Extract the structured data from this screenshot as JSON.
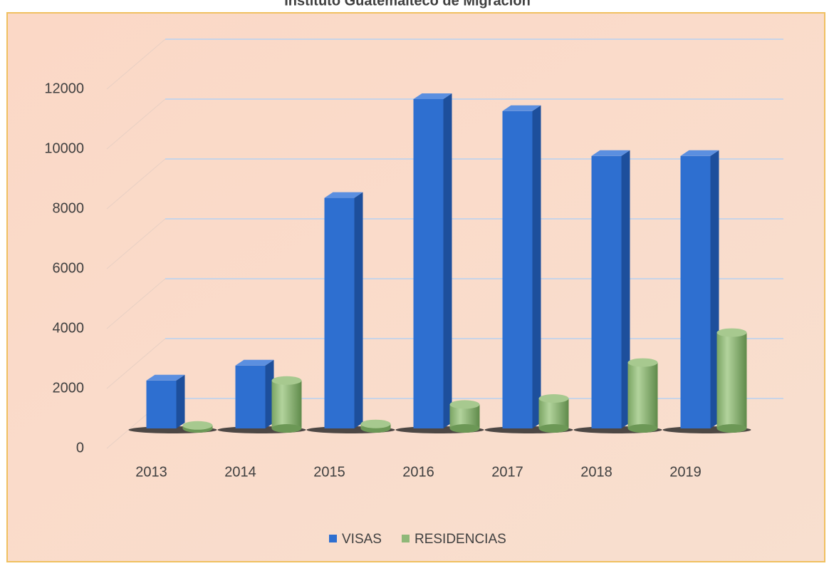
{
  "chart_data": {
    "type": "bar3d",
    "title": "Instituto Guatemalteco de Migración",
    "categories": [
      "2013",
      "2014",
      "2015",
      "2016",
      "2017",
      "2018",
      "2019"
    ],
    "series": [
      {
        "name": "VISAS",
        "color": "#2e6fd0",
        "shape": "box",
        "values": [
          1600,
          2100,
          7700,
          11000,
          10600,
          9100,
          9100
        ]
      },
      {
        "name": "RESIDENCIAS",
        "color": "#8fb878",
        "shape": "cylinder",
        "values": [
          100,
          1600,
          150,
          800,
          1000,
          2200,
          3200
        ]
      }
    ],
    "ylim": [
      0,
      12000
    ],
    "yticks": [
      0,
      2000,
      4000,
      6000,
      8000,
      10000,
      12000
    ],
    "grid": true,
    "legend": "bottom"
  }
}
